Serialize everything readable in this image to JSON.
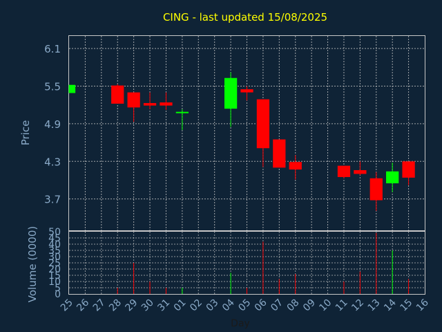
{
  "chart_data": {
    "type": "candlestick",
    "title": "CING - last updated 15/08/2025",
    "xlabel": "Day",
    "ylabel": "Price",
    "volume_label": "Volume (0000)",
    "ylim": [
      3.2,
      6.3
    ],
    "yticks": [
      "6.1",
      "5.5",
      "4.9",
      "4.3",
      "3.7"
    ],
    "volume_ylim": [
      0,
      50
    ],
    "volume_yticks": [
      "50",
      "45",
      "40",
      "35",
      "30",
      "25",
      "20",
      "15",
      "10",
      "5",
      "0"
    ],
    "grid": true,
    "categories": [
      "25",
      "26",
      "27",
      "28",
      "29",
      "30",
      "31",
      "01",
      "02",
      "03",
      "04",
      "05",
      "06",
      "07",
      "08",
      "09",
      "10",
      "11",
      "12",
      "13",
      "14",
      "15",
      "16"
    ],
    "candles": [
      {
        "day": "25",
        "open": 5.39,
        "close": 5.52,
        "high": 5.52,
        "low": 5.39,
        "volume": 0
      },
      {
        "day": "28",
        "open": 5.51,
        "close": 5.22,
        "high": 5.53,
        "low": 5.22,
        "volume": 5
      },
      {
        "day": "29",
        "open": 5.4,
        "close": 5.16,
        "high": 5.4,
        "low": 4.93,
        "volume": 25
      },
      {
        "day": "30",
        "open": 5.23,
        "close": 5.19,
        "high": 5.4,
        "low": 5.13,
        "volume": 10
      },
      {
        "day": "31",
        "open": 5.24,
        "close": 5.19,
        "high": 5.4,
        "low": 5.12,
        "volume": 5
      },
      {
        "day": "01",
        "open": 5.07,
        "close": 5.09,
        "high": 5.13,
        "low": 4.8,
        "volume": 5
      },
      {
        "day": "04",
        "open": 5.14,
        "close": 5.63,
        "high": 5.72,
        "low": 4.85,
        "volume": 17
      },
      {
        "day": "05",
        "open": 5.45,
        "close": 5.4,
        "high": 5.5,
        "low": 5.27,
        "volume": 5
      },
      {
        "day": "06",
        "open": 5.29,
        "close": 4.51,
        "high": 5.29,
        "low": 4.21,
        "volume": 42
      },
      {
        "day": "07",
        "open": 4.65,
        "close": 4.2,
        "high": 4.65,
        "low": 4.2,
        "volume": 12
      },
      {
        "day": "08",
        "open": 4.29,
        "close": 4.17,
        "high": 4.4,
        "low": 4.01,
        "volume": 16
      },
      {
        "day": "11",
        "open": 4.23,
        "close": 4.05,
        "high": 4.23,
        "low": 4.03,
        "volume": 10
      },
      {
        "day": "12",
        "open": 4.16,
        "close": 4.1,
        "high": 4.3,
        "low": 4.08,
        "volume": 18
      },
      {
        "day": "13",
        "open": 4.03,
        "close": 3.68,
        "high": 4.13,
        "low": 3.51,
        "volume": 49
      },
      {
        "day": "14",
        "open": 3.95,
        "close": 4.14,
        "high": 4.28,
        "low": 3.81,
        "volume": 35
      },
      {
        "day": "15",
        "open": 4.3,
        "close": 4.04,
        "high": 4.3,
        "low": 3.92,
        "volume": 12
      }
    ],
    "colors": {
      "background": "#0f2336",
      "up": "#00ff00",
      "down": "#ff0000",
      "grid": "#c8c8c8",
      "axis_text": "#8aaac8",
      "title": "#ffff00",
      "xlabel": "#1a1a1a"
    }
  }
}
